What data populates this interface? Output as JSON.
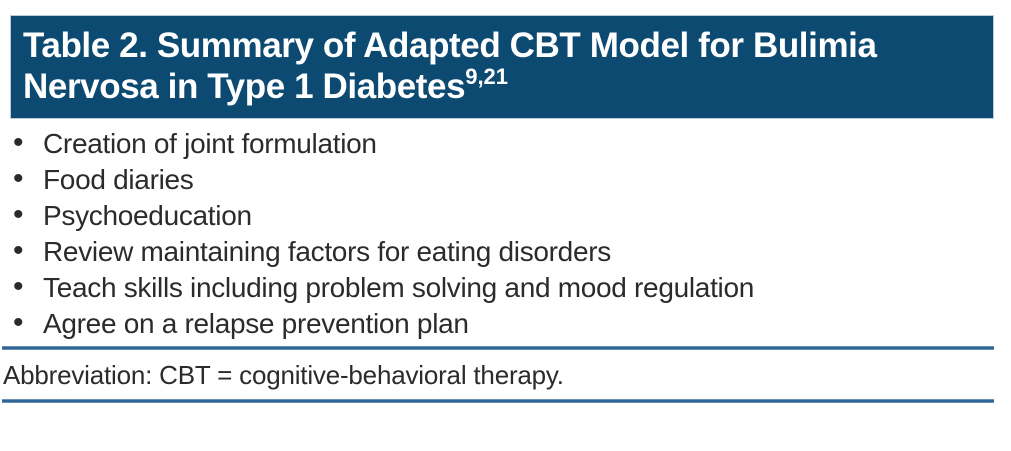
{
  "colors": {
    "header_bg": "#0c4a72",
    "header_text": "#ffffff",
    "rule_blue": "#2d6697",
    "body_text": "#2b2b2b"
  },
  "table": {
    "title_line1": "Table 2. Summary of Adapted CBT Model for Bulimia",
    "title_line2": "Nervosa in Type 1 Diabetes",
    "title_reference_superscript": "9,21",
    "bullet_glyph": "•",
    "items": [
      "Creation of joint formulation",
      "Food diaries",
      "Psychoeducation",
      "Review maintaining factors for eating disorders",
      "Teach skills including problem solving and mood regulation",
      "Agree on a relapse prevention plan"
    ],
    "footnote": "Abbreviation: CBT = cognitive-behavioral therapy."
  }
}
